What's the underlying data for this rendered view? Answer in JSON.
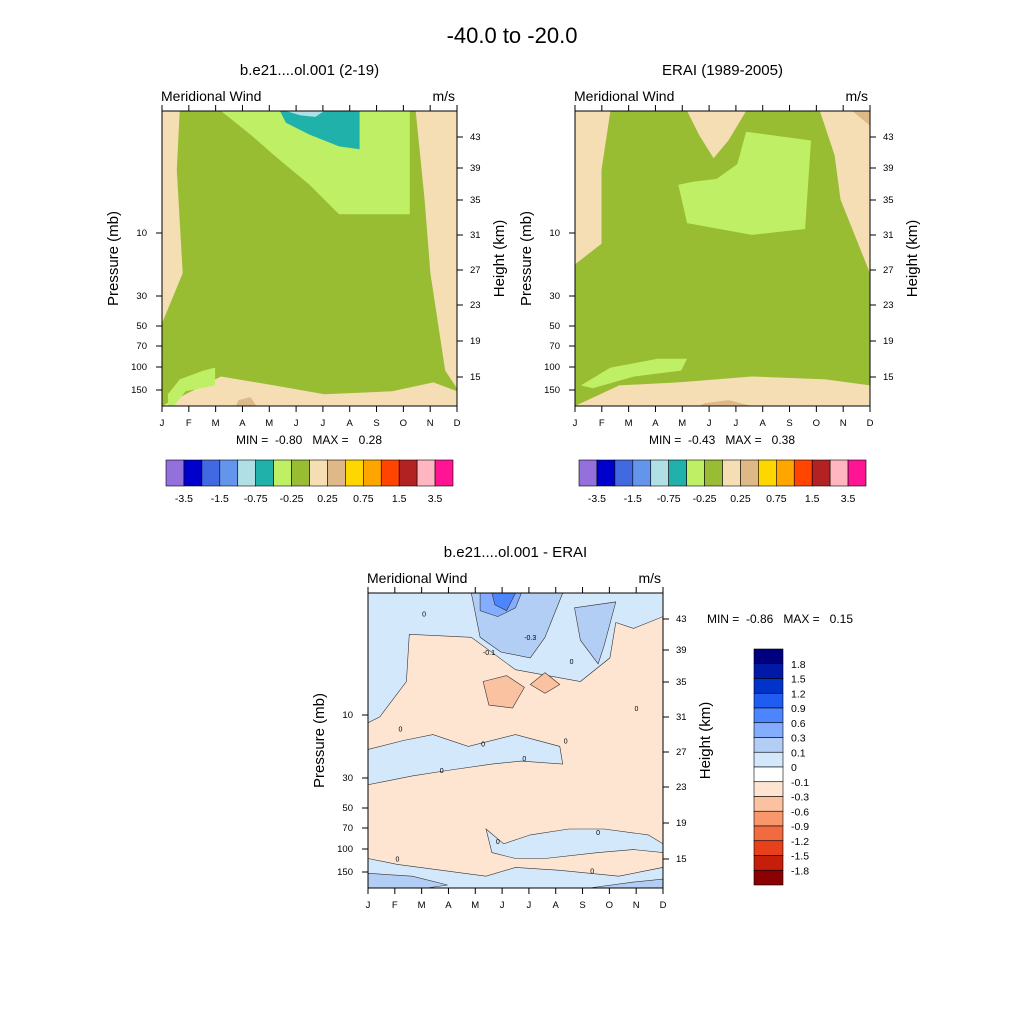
{
  "figure": {
    "title": "-40.0 to -20.0"
  },
  "chart_data": [
    {
      "type": "heatmap",
      "title": "b.e21....ol.001 (2-19)",
      "left_string": "Meridional Wind",
      "right_string": "m/s",
      "ylabel": "Pressure (mb)",
      "ylabel_right": "Height (km)",
      "x_ticks": [
        "J",
        "F",
        "M",
        "A",
        "M",
        "J",
        "J",
        "A",
        "S",
        "O",
        "N",
        "D"
      ],
      "y_ticks": [
        "10",
        "30",
        "50",
        "70",
        "100",
        "150"
      ],
      "y_right_ticks": [
        "43",
        "39",
        "35",
        "31",
        "27",
        "23",
        "19",
        "15"
      ],
      "min_text": "MIN =  -0.80   MAX =   0.28",
      "colorbar": {
        "colors": [
          "#9370db",
          "#0000cd",
          "#4169e1",
          "#6495ed",
          "#b0e0e6",
          "#20b2aa",
          "#bfef65",
          "#98bd33",
          "#f5deb3",
          "#deb887",
          "#ffd700",
          "#ffa500",
          "#ff4500",
          "#b22222",
          "#ffb6c1",
          "#ff1493"
        ],
        "labels": [
          "-3.5",
          "-1.5",
          "-0.75",
          "-0.25",
          "0.25",
          "0.75",
          "1.5",
          "3.5"
        ]
      }
    },
    {
      "type": "heatmap",
      "title": "ERAI (1989-2005)",
      "left_string": "Meridional Wind",
      "right_string": "m/s",
      "ylabel": "Pressure (mb)",
      "ylabel_right": "Height (km)",
      "x_ticks": [
        "J",
        "F",
        "M",
        "A",
        "M",
        "J",
        "J",
        "A",
        "S",
        "O",
        "N",
        "D"
      ],
      "y_ticks": [
        "10",
        "30",
        "50",
        "70",
        "100",
        "150"
      ],
      "y_right_ticks": [
        "43",
        "39",
        "35",
        "31",
        "27",
        "23",
        "19",
        "15"
      ],
      "min_text": "MIN =  -0.43   MAX =   0.38",
      "colorbar": {
        "colors": [
          "#9370db",
          "#0000cd",
          "#4169e1",
          "#6495ed",
          "#b0e0e6",
          "#20b2aa",
          "#bfef65",
          "#98bd33",
          "#f5deb3",
          "#deb887",
          "#ffd700",
          "#ffa500",
          "#ff4500",
          "#b22222",
          "#ffb6c1",
          "#ff1493"
        ],
        "labels": [
          "-3.5",
          "-1.5",
          "-0.75",
          "-0.25",
          "0.25",
          "0.75",
          "1.5",
          "3.5"
        ]
      }
    },
    {
      "type": "heatmap",
      "title": "b.e21....ol.001 - ERAI",
      "left_string": "Meridional Wind",
      "right_string": "m/s",
      "ylabel": "Pressure (mb)",
      "ylabel_right": "Height (km)",
      "x_ticks": [
        "J",
        "F",
        "M",
        "A",
        "M",
        "J",
        "J",
        "A",
        "S",
        "O",
        "N",
        "D"
      ],
      "y_ticks": [
        "10",
        "30",
        "50",
        "70",
        "100",
        "150"
      ],
      "y_right_ticks": [
        "43",
        "39",
        "35",
        "31",
        "27",
        "23",
        "19",
        "15"
      ],
      "min_text": "MIN =  -0.86   MAX =   0.15",
      "contour_labels": [
        "0",
        "-0.3",
        "-0.1",
        "0",
        "0",
        "0",
        "0",
        "0",
        "0",
        "0",
        "0",
        "0",
        "0",
        "0"
      ],
      "colorbar": {
        "colors": [
          "#00007f",
          "#0019a8",
          "#0033cc",
          "#1f5cf2",
          "#4d85ff",
          "#85adff",
          "#b3cef5",
          "#d4e8fc",
          "#ffffff",
          "#fde5d2",
          "#fbc2a2",
          "#f9976c",
          "#f26b40",
          "#e8401a",
          "#c51f0c",
          "#8b0000"
        ],
        "labels": [
          "1.8",
          "1.5",
          "1.2",
          "0.9",
          "0.6",
          "0.3",
          "0.1",
          "0",
          "-0.1",
          "-0.3",
          "-0.6",
          "-0.9",
          "-1.2",
          "-1.5",
          "-1.8"
        ]
      }
    }
  ]
}
